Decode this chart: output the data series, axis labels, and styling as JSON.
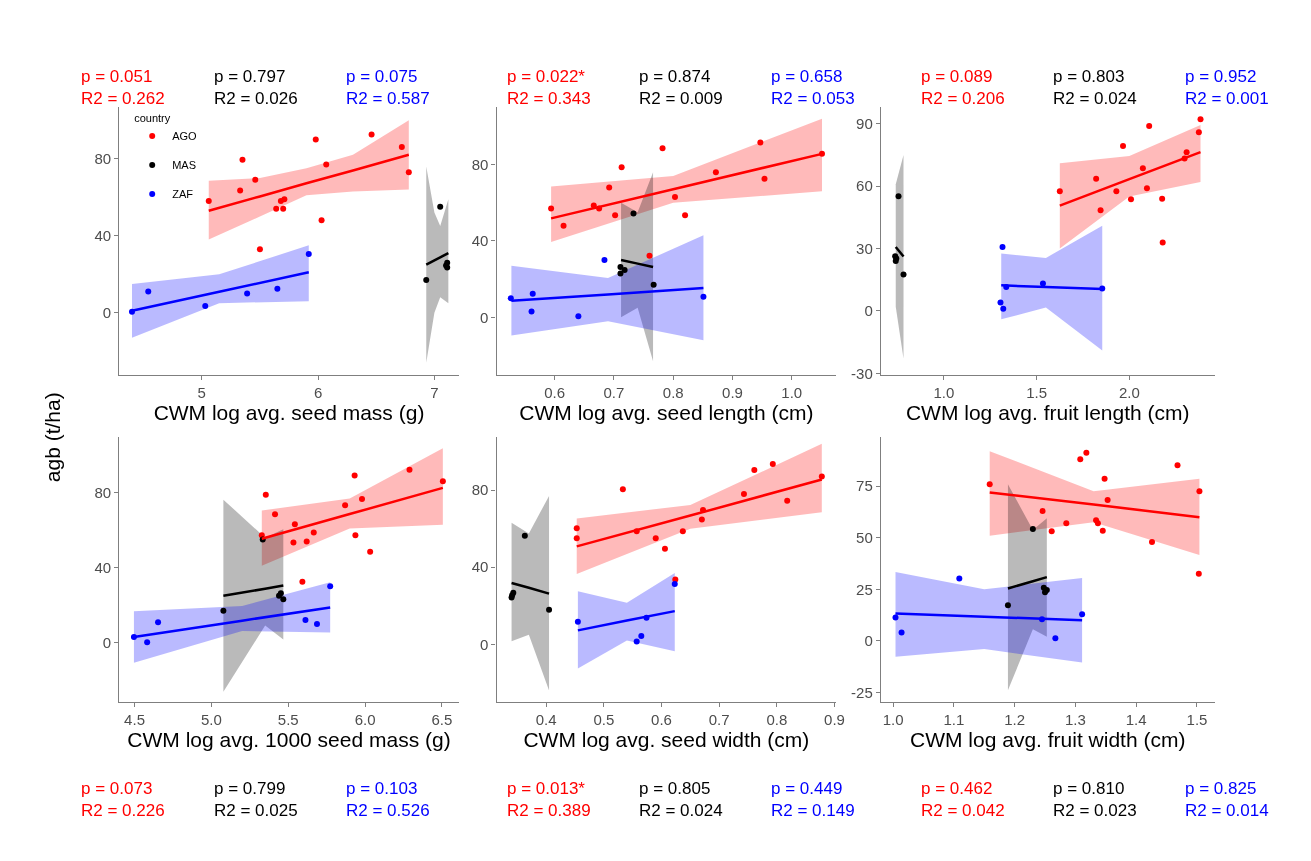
{
  "chart_data": [
    {
      "type": "scatter",
      "xlabel": "CWM log avg. seed mass (g)",
      "ylabel": "agb (t/ha)",
      "legend": "top left",
      "legend_title": "country",
      "marker": "circle",
      "xlim": [
        4.29,
        7.21
      ],
      "ylim": [
        -32.5,
        106.7
      ],
      "xticks": [
        5,
        6,
        7
      ],
      "yticks": [
        0,
        40,
        80
      ],
      "annotations": [
        "p = 0.051\nR2 = 0.262",
        "p = 0.797\nR2 = 0.026",
        "p = 0.075\nR2 = 0.587"
      ],
      "series": [
        {
          "name": "AGO",
          "color": "#ff0000",
          "x": [
            5.06,
            5.33,
            5.35,
            5.46,
            5.5,
            5.64,
            5.68,
            5.7,
            5.71,
            5.98,
            6.03,
            6.07,
            6.46,
            6.72,
            6.78
          ],
          "values": [
            58,
            63.5,
            79.5,
            69,
            33,
            54,
            58,
            54,
            59,
            90,
            48,
            77,
            92.5,
            86,
            73
          ]
        },
        {
          "name": "MAS",
          "color": "#000000",
          "x": [
            6.93,
            7.05,
            7.11,
            7.11,
            7.1
          ],
          "values": [
            17,
            55,
            26,
            23.5,
            24.5
          ]
        },
        {
          "name": "ZAF",
          "color": "#0000ff",
          "x": [
            4.4,
            4.54,
            5.03,
            5.39,
            5.65,
            5.92
          ],
          "values": [
            0.5,
            11,
            3.5,
            10,
            12.5,
            30.5
          ]
        },
        {
          "type": "line",
          "marker": "none",
          "color": "#ff0000",
          "x": [
            5.06,
            5.5,
            5.9,
            6.3,
            6.78
          ],
          "values": [
            53,
            60.4,
            67.2,
            73.9,
            82
          ],
          "lower": [
            38,
            50,
            61,
            63,
            64
          ],
          "upper": [
            68.5,
            70,
            75,
            82,
            100
          ]
        },
        {
          "type": "line",
          "marker": "none",
          "color": "#000000",
          "x": [
            6.93,
            7.0,
            7.05,
            7.12
          ],
          "values": [
            25,
            27.2,
            28.8,
            31
          ],
          "lower": [
            -26,
            0,
            8,
            5
          ],
          "upper": [
            76,
            52,
            45,
            59
          ]
        },
        {
          "type": "line",
          "marker": "none",
          "color": "#0000ff",
          "x": [
            4.4,
            5.15,
            5.92
          ],
          "values": [
            1,
            10.9,
            21
          ],
          "lower": [
            -13,
            5,
            6
          ],
          "upper": [
            15,
            20,
            35
          ]
        }
      ]
    },
    {
      "type": "scatter",
      "xlabel": "CWM log avg. seed length (cm)",
      "marker": "circle",
      "xlim": [
        0.502,
        1.075
      ],
      "ylim": [
        -30.4,
        110
      ],
      "xticks": [
        0.6,
        0.7,
        0.8,
        0.9,
        {
          "value": 1.0,
          "label": "1.0"
        }
      ],
      "yticks": [
        0,
        40,
        80
      ],
      "annotations": [
        "p = 0.022*\nR2 = 0.343",
        "p = 0.874\nR2 = 0.009",
        "p = 0.658\nR2 = 0.053"
      ],
      "series": [
        {
          "color": "#ff0000",
          "x": [
            0.594,
            0.615,
            0.666,
            0.675,
            0.692,
            0.702,
            0.713,
            0.76,
            0.782,
            0.803,
            0.82,
            0.872,
            0.947,
            0.954,
            1.051
          ],
          "values": [
            57,
            48,
            58.6,
            57,
            68,
            53.4,
            78.6,
            32.3,
            88.5,
            63,
            53.4,
            76,
            91.6,
            72.5,
            85.6
          ]
        },
        {
          "color": "#000000",
          "x": [
            0.733,
            0.711,
            0.718,
            0.711,
            0.767
          ],
          "values": [
            54.4,
            26.4,
            24.8,
            23,
            17
          ]
        },
        {
          "color": "#0000ff",
          "x": [
            0.526,
            0.563,
            0.561,
            0.64,
            0.684,
            0.851
          ],
          "values": [
            10,
            12.3,
            3,
            0.5,
            30,
            10.8
          ]
        },
        {
          "type": "line",
          "marker": "none",
          "color": "#ff0000",
          "x": [
            0.594,
            0.8,
            1.051
          ],
          "values": [
            51.8,
            67.1,
            85.6
          ],
          "lower": [
            39.5,
            60,
            66
          ],
          "upper": [
            68.5,
            74,
            104
          ]
        },
        {
          "type": "line",
          "marker": "none",
          "color": "#000000",
          "x": [
            0.712,
            0.74,
            0.766
          ],
          "values": [
            30,
            28.1,
            26.3
          ],
          "lower": [
            0,
            5,
            -23
          ],
          "upper": [
            60,
            55,
            76
          ]
        },
        {
          "type": "line",
          "marker": "none",
          "color": "#0000ff",
          "x": [
            0.527,
            0.69,
            0.851
          ],
          "values": [
            8.7,
            12,
            15.3
          ],
          "lower": [
            -9.5,
            -2,
            -12
          ],
          "upper": [
            27,
            20.6,
            43
          ]
        }
      ]
    },
    {
      "type": "scatter",
      "xlabel": "CWM log avg. fruit length (cm)",
      "marker": "circle",
      "xlim": [
        0.66,
        2.46
      ],
      "ylim": [
        -31,
        98
      ],
      "xticks": [
        {
          "value": 1.0,
          "label": "1.0"
        },
        1.5,
        {
          "value": 2.0,
          "label": "2.0"
        }
      ],
      "yticks": [
        -30,
        0,
        30,
        60,
        90
      ],
      "annotations": [
        "p = 0.089\nR2 = 0.206",
        "p = 0.803\nR2 = 0.024",
        "p = 0.952\nR2 = 0.001"
      ],
      "series": [
        {
          "color": "#ff0000",
          "x": [
            1.625,
            1.821,
            1.845,
            1.93,
            1.966,
            2.009,
            2.073,
            2.095,
            2.107,
            2.177,
            2.18,
            2.309,
            2.298,
            2.375,
            2.384
          ],
          "values": [
            57.6,
            63.6,
            48.5,
            57.6,
            79.4,
            53.7,
            68.7,
            59,
            89,
            54,
            32.9,
            76.4,
            73.4,
            86,
            92.2
          ]
        },
        {
          "color": "#000000",
          "x": [
            0.755,
            0.737,
            0.743,
            0.74,
            0.782
          ],
          "values": [
            55.2,
            26.3,
            25.2,
            24,
            17.5
          ]
        },
        {
          "color": "#0000ff",
          "x": [
            1.316,
            1.305,
            1.32,
            1.336,
            1.534,
            1.854
          ],
          "values": [
            30.8,
            4,
            1,
            11.5,
            13.2,
            10.8
          ]
        },
        {
          "type": "line",
          "marker": "none",
          "color": "#ff0000",
          "x": [
            1.625,
            2.0,
            2.384
          ],
          "values": [
            50.7,
            63.4,
            76.4
          ],
          "lower": [
            30,
            55,
            62
          ],
          "upper": [
            71,
            74.6,
            89.5
          ]
        },
        {
          "type": "line",
          "marker": "none",
          "color": "#000000",
          "x": [
            0.74,
            0.782
          ],
          "values": [
            30.8,
            26.2
          ],
          "lower": [
            2,
            -23
          ],
          "upper": [
            61,
            75
          ]
        },
        {
          "type": "line",
          "marker": "none",
          "color": "#0000ff",
          "x": [
            1.309,
            1.55,
            1.854
          ],
          "values": [
            12.3,
            11.5,
            10.5
          ],
          "lower": [
            -4,
            1.6,
            -19
          ],
          "upper": [
            27.6,
            25.5,
            41
          ]
        }
      ]
    },
    {
      "type": "scatter",
      "xlabel": "CWM log avg. 1000 seed mass (g)",
      "marker": "circle",
      "xlim": [
        4.4,
        6.61
      ],
      "ylim": [
        -32,
        110
      ],
      "xticks": [
        4.5,
        {
          "value": 5.0,
          "label": "5.0"
        },
        5.5,
        {
          "value": 6.0,
          "label": "6.0"
        },
        6.5
      ],
      "yticks": [
        0,
        40,
        80
      ],
      "annotations": [
        "p = 0.073\nR2 = 0.226",
        "p = 0.799\nR2 = 0.025",
        "p = 0.103\nR2 = 0.526"
      ],
      "series": [
        {
          "color": "#ff0000",
          "x": [
            5.328,
            5.354,
            5.414,
            5.534,
            5.543,
            5.62,
            5.666,
            5.87,
            5.932,
            5.937,
            5.98,
            6.033,
            6.289,
            6.506,
            5.592
          ],
          "values": [
            57.4,
            79,
            68.6,
            53.5,
            63.3,
            54,
            58.8,
            73.4,
            89.4,
            57.4,
            76.8,
            48.5,
            92.4,
            86.2,
            32.5
          ]
        },
        {
          "color": "#000000",
          "x": [
            5.334,
            5.078,
            5.44,
            5.452,
            5.468
          ],
          "values": [
            55,
            16.9,
            24.9,
            26.3,
            23
          ]
        },
        {
          "color": "#0000ff",
          "x": [
            4.496,
            4.582,
            4.653,
            5.612,
            5.687,
            5.773
          ],
          "values": [
            2.8,
            0,
            10.7,
            12,
            9.8,
            30
          ]
        },
        {
          "type": "line",
          "marker": "none",
          "color": "#ff0000",
          "x": [
            5.328,
            5.9,
            6.506
          ],
          "values": [
            55.5,
            68.7,
            82.7
          ],
          "lower": [
            41,
            61,
            63
          ],
          "upper": [
            70.6,
            77,
            104
          ]
        },
        {
          "type": "line",
          "marker": "none",
          "color": "#000000",
          "x": [
            5.078,
            5.35,
            5.468
          ],
          "values": [
            24.9,
            28.7,
            30.4
          ],
          "lower": [
            -26.5,
            9,
            1.5
          ],
          "upper": [
            76.4,
            56,
            60.5
          ]
        },
        {
          "type": "line",
          "marker": "none",
          "color": "#0000ff",
          "x": [
            4.496,
            5.2,
            5.773
          ],
          "values": [
            2.8,
            11.6,
            18.7
          ],
          "lower": [
            -11,
            6,
            5.2
          ],
          "upper": [
            16.7,
            19.5,
            32.2
          ]
        }
      ]
    },
    {
      "type": "scatter",
      "xlabel": "CWM log avg. seed width (cm)",
      "marker": "circle",
      "xlim": [
        0.314,
        0.903
      ],
      "ylim": [
        -30,
        107.6
      ],
      "xticks": [
        0.4,
        0.5,
        0.6,
        0.7,
        0.8,
        0.9
      ],
      "yticks": [
        0,
        40,
        80
      ],
      "annotations": [
        "p = 0.013*\nR2 = 0.389",
        "p = 0.805\nR2 = 0.024",
        "p = 0.449\nR2 = 0.149"
      ],
      "series": [
        {
          "color": "#ff0000",
          "x": [
            0.453,
            0.453,
            0.533,
            0.557,
            0.59,
            0.606,
            0.637,
            0.67,
            0.672,
            0.743,
            0.761,
            0.793,
            0.818,
            0.878,
            0.624
          ],
          "values": [
            60.2,
            55,
            80.5,
            58.7,
            55,
            49.6,
            58.7,
            64.7,
            69.7,
            78,
            90.4,
            93.5,
            74.5,
            87,
            33.6
          ]
        },
        {
          "color": "#000000",
          "x": [
            0.363,
            0.34,
            0.341,
            0.343,
            0.405
          ],
          "values": [
            56.3,
            24.3,
            25.5,
            26.7,
            17.9
          ]
        },
        {
          "color": "#0000ff",
          "x": [
            0.455,
            0.565,
            0.557,
            0.574,
            0.623
          ],
          "values": [
            11.7,
            4.3,
            1.4,
            13.8,
            31.3
          ]
        },
        {
          "type": "line",
          "marker": "none",
          "color": "#ff0000",
          "x": [
            0.453,
            0.65,
            0.878
          ],
          "values": [
            50.8,
            66.8,
            85.5
          ],
          "lower": [
            36.5,
            60,
            68.5
          ],
          "upper": [
            65.3,
            72.3,
            104
          ]
        },
        {
          "type": "line",
          "marker": "none",
          "color": "#000000",
          "x": [
            0.34,
            0.37,
            0.405
          ],
          "values": [
            31.8,
            29.3,
            26.3
          ],
          "lower": [
            1.5,
            5,
            -24
          ],
          "upper": [
            63,
            57.5,
            77
          ]
        },
        {
          "type": "line",
          "marker": "none",
          "color": "#0000ff",
          "x": [
            0.455,
            0.54,
            0.623
          ],
          "values": [
            7.2,
            12.3,
            17.2
          ],
          "lower": [
            -12.6,
            2,
            -3.6
          ],
          "upper": [
            27.5,
            21.5,
            37
          ]
        }
      ]
    },
    {
      "type": "scatter",
      "xlabel": "CWM log avg. fruit width (cm)",
      "marker": "circle",
      "xlim": [
        0.98,
        1.529
      ],
      "ylim": [
        -29.7,
        98.9
      ],
      "xticks": [
        {
          "value": 1.0,
          "label": "1.0"
        },
        1.1,
        1.2,
        1.3,
        1.4,
        1.5
      ],
      "yticks": [
        -25,
        0,
        25,
        50,
        75
      ],
      "annotations": [
        "p = 0.462\nR2 = 0.042",
        "p = 0.810\nR2 = 0.023",
        "p = 0.825\nR2 = 0.014"
      ],
      "series": [
        {
          "color": "#ff0000",
          "x": [
            1.159,
            1.246,
            1.261,
            1.285,
            1.308,
            1.318,
            1.334,
            1.337,
            1.345,
            1.348,
            1.353,
            1.426,
            1.468,
            1.504,
            1.503
          ],
          "values": [
            76,
            63,
            53.2,
            57,
            88.1,
            91.2,
            58.5,
            57,
            53.4,
            78.6,
            68.3,
            47.9,
            85.2,
            72.5,
            32.5
          ]
        },
        {
          "color": "#000000",
          "x": [
            1.23,
            1.189,
            1.248,
            1.25,
            1.253
          ],
          "values": [
            54.3,
            17.2,
            25.7,
            23.6,
            24.6
          ]
        },
        {
          "color": "#0000ff",
          "x": [
            1.004,
            1.014,
            1.109,
            1.245,
            1.267,
            1.311
          ],
          "values": [
            11.3,
            4,
            30.2,
            10.5,
            1.3,
            12.9
          ]
        },
        {
          "type": "line",
          "marker": "none",
          "color": "#ff0000",
          "x": [
            1.159,
            1.33,
            1.504
          ],
          "values": [
            72,
            66.1,
            60
          ],
          "lower": [
            51,
            57.5,
            41.6
          ],
          "upper": [
            92,
            72.5,
            78.6
          ]
        },
        {
          "type": "line",
          "marker": "none",
          "color": "#000000",
          "x": [
            1.189,
            1.23,
            1.253
          ],
          "values": [
            25.4,
            28.9,
            30.9
          ],
          "lower": [
            -24,
            5.6,
            2
          ],
          "upper": [
            76,
            53.7,
            59.5
          ]
        },
        {
          "type": "line",
          "marker": "none",
          "color": "#0000ff",
          "x": [
            1.004,
            1.15,
            1.311
          ],
          "values": [
            13.2,
            11.7,
            10
          ],
          "lower": [
            -7.7,
            -4,
            -10.5
          ],
          "upper": [
            33.4,
            25,
            30.5
          ]
        }
      ]
    }
  ]
}
